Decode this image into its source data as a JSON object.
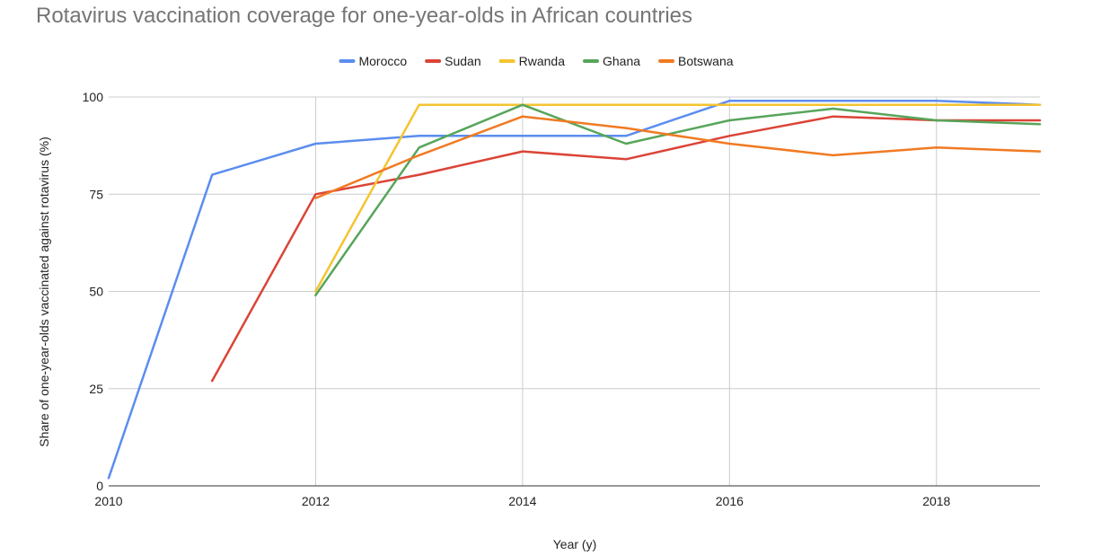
{
  "chart_data": {
    "type": "line",
    "title": "Rotavirus vaccination coverage for one-year-olds in African countries",
    "xlabel": "Year (y)",
    "ylabel": "Share of one-year-olds vaccinated against rotavirus (%)",
    "xlim": [
      2010,
      2019
    ],
    "ylim": [
      0,
      100
    ],
    "xticks": [
      2010,
      2012,
      2014,
      2016,
      2018
    ],
    "yticks": [
      0,
      25,
      50,
      75,
      100
    ],
    "grid": true,
    "legend_position": "top",
    "series": [
      {
        "name": "Morocco",
        "color": "#5B8DEF",
        "points": [
          [
            2010,
            2
          ],
          [
            2011,
            80
          ],
          [
            2012,
            88
          ],
          [
            2013,
            90
          ],
          [
            2014,
            90
          ],
          [
            2015,
            90
          ],
          [
            2016,
            99
          ],
          [
            2017,
            99
          ],
          [
            2018,
            99
          ],
          [
            2019,
            98
          ]
        ]
      },
      {
        "name": "Sudan",
        "color": "#DB4437",
        "points": [
          [
            2011,
            27
          ],
          [
            2012,
            75
          ],
          [
            2013,
            80
          ],
          [
            2014,
            86
          ],
          [
            2015,
            84
          ],
          [
            2016,
            90
          ],
          [
            2017,
            95
          ],
          [
            2018,
            94
          ],
          [
            2019,
            94
          ]
        ]
      },
      {
        "name": "Rwanda",
        "color": "#F4C430",
        "points": [
          [
            2012,
            50
          ],
          [
            2013,
            98
          ],
          [
            2014,
            98
          ],
          [
            2015,
            98
          ],
          [
            2016,
            98
          ],
          [
            2017,
            98
          ],
          [
            2018,
            98
          ],
          [
            2019,
            98
          ]
        ]
      },
      {
        "name": "Ghana",
        "color": "#57A55A",
        "points": [
          [
            2012,
            49
          ],
          [
            2013,
            87
          ],
          [
            2014,
            98
          ],
          [
            2015,
            88
          ],
          [
            2016,
            94
          ],
          [
            2017,
            97
          ],
          [
            2018,
            94
          ],
          [
            2019,
            93
          ]
        ]
      },
      {
        "name": "Botswana",
        "color": "#F07A22",
        "points": [
          [
            2012,
            74
          ],
          [
            2013,
            85
          ],
          [
            2014,
            95
          ],
          [
            2015,
            92
          ],
          [
            2016,
            88
          ],
          [
            2017,
            85
          ],
          [
            2018,
            87
          ],
          [
            2019,
            86
          ]
        ]
      }
    ]
  }
}
